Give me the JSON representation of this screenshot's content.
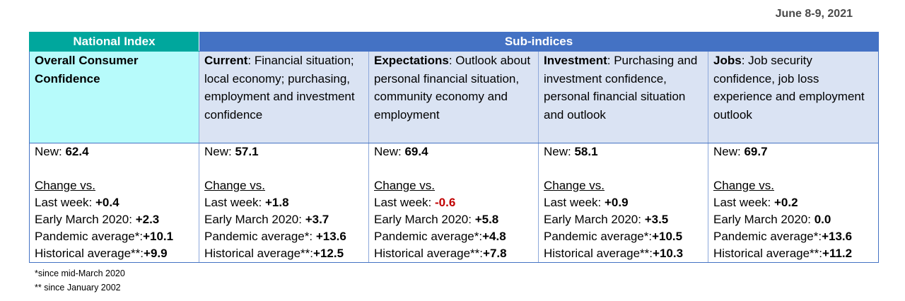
{
  "date": "June 8-9, 2021",
  "headers": {
    "national": "National Index",
    "sub": "Sub-indices"
  },
  "columns": [
    {
      "title": "Overall Consumer Confidence",
      "desc": "",
      "new_label": "New:",
      "new_value": "62.4",
      "change_label": "Change vs.",
      "rows": [
        {
          "label": "Last week:",
          "value": "+0.4",
          "negative": false
        },
        {
          "label": "Early March 2020:",
          "value": "+2.3",
          "negative": false
        },
        {
          "label": "Pandemic average*:",
          "value": "+10.1",
          "negative": false
        },
        {
          "label": "Historical average**:",
          "value": "+9.9",
          "negative": false
        }
      ]
    },
    {
      "title": "Current",
      "desc": ":  Financial situation; local economy; purchasing, employment and investment confidence",
      "new_label": "New:",
      "new_value": "57.1",
      "change_label": "Change vs.",
      "rows": [
        {
          "label": "Last week:",
          "value": "+1.8",
          "negative": false
        },
        {
          "label": "Early March 2020:",
          "value": "+3.7",
          "negative": false
        },
        {
          "label": "Pandemic average*:",
          "value": " +13.6",
          "negative": false
        },
        {
          "label": "Historical average**:",
          "value": "+12.5",
          "negative": false
        }
      ]
    },
    {
      "title": "Expectations",
      "desc": ":  Outlook about personal financial situation, community economy and employment",
      "new_label": "New:",
      "new_value": "69.4",
      "change_label": "Change vs.",
      "rows": [
        {
          "label": "Last week:",
          "value": "-0.6",
          "negative": true
        },
        {
          "label": "Early March 2020:",
          "value": "+5.8",
          "negative": false
        },
        {
          "label": "Pandemic average*:",
          "value": "+4.8",
          "negative": false
        },
        {
          "label": "Historical average**:",
          "value": "+7.8",
          "negative": false
        }
      ]
    },
    {
      "title": "Investment",
      "desc": ": Purchasing and investment confidence, personal financial situation and outlook",
      "new_label": "New:",
      "new_value": "58.1",
      "change_label": "Change vs.",
      "rows": [
        {
          "label": "Last week:",
          "value": "+0.9",
          "negative": false
        },
        {
          "label": "Early March 2020:",
          "value": "+3.5",
          "negative": false
        },
        {
          "label": "Pandemic average*:",
          "value": "+10.5",
          "negative": false
        },
        {
          "label": "Historical average**:",
          "value": "+10.3",
          "negative": false
        }
      ]
    },
    {
      "title": "Jobs",
      "desc": ": Job security confidence, job loss experience  and employment outlook",
      "new_label": "New:",
      "new_value": "69.7",
      "change_label": "Change vs.",
      "rows": [
        {
          "label": "Last week:",
          "value": "+0.2",
          "negative": false
        },
        {
          "label": "Early March 2020:",
          "value": "0.0",
          "negative": false
        },
        {
          "label": "Pandemic average*:",
          "value": "+13.6",
          "negative": false
        },
        {
          "label": "Historical average**:",
          "value": "+11.2",
          "negative": false
        }
      ]
    }
  ],
  "footnotes": [
    "*since mid-March 2020",
    "** since January 2002"
  ]
}
